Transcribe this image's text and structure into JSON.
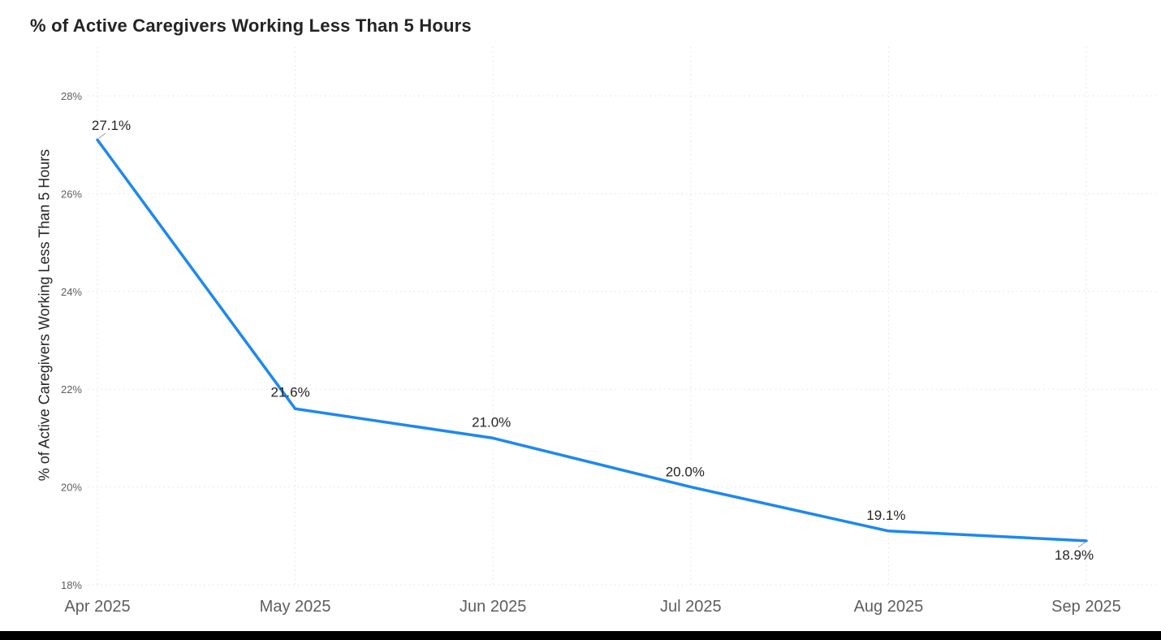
{
  "chart_data": {
    "type": "line",
    "title": "% of Active Caregivers Working Less Than 5 Hours",
    "xlabel": "",
    "ylabel": "% of Active Caregivers Working Less Than 5 Hours",
    "categories": [
      "Apr 2025",
      "May 2025",
      "Jun 2025",
      "Jul 2025",
      "Aug 2025",
      "Sep 2025"
    ],
    "values": [
      27.1,
      21.6,
      21.0,
      20.0,
      19.1,
      18.9
    ],
    "data_labels": [
      "27.1%",
      "21.6%",
      "21.0%",
      "20.0%",
      "19.1%",
      "18.9%"
    ],
    "ylim": [
      18,
      28.5
    ],
    "yticks": [
      18,
      20,
      22,
      24,
      26,
      28
    ],
    "ytick_labels": [
      "18%",
      "20%",
      "22%",
      "24%",
      "26%",
      "28%"
    ],
    "grid": "dotted horizontal and vertical gridlines",
    "legend": "none",
    "label_leader_lines": [
      "first point (27.1%)",
      "last point (18.9%)"
    ],
    "colors": {
      "line": "#1E88F0",
      "title_text": "#252423",
      "axis_text": "#605E5C",
      "data_label_text": "#252423",
      "gridline": "#E2E2E2",
      "leader_line": "#A0A0A0",
      "bottom_bar": "#000000",
      "background": "#FFFFFF"
    }
  }
}
